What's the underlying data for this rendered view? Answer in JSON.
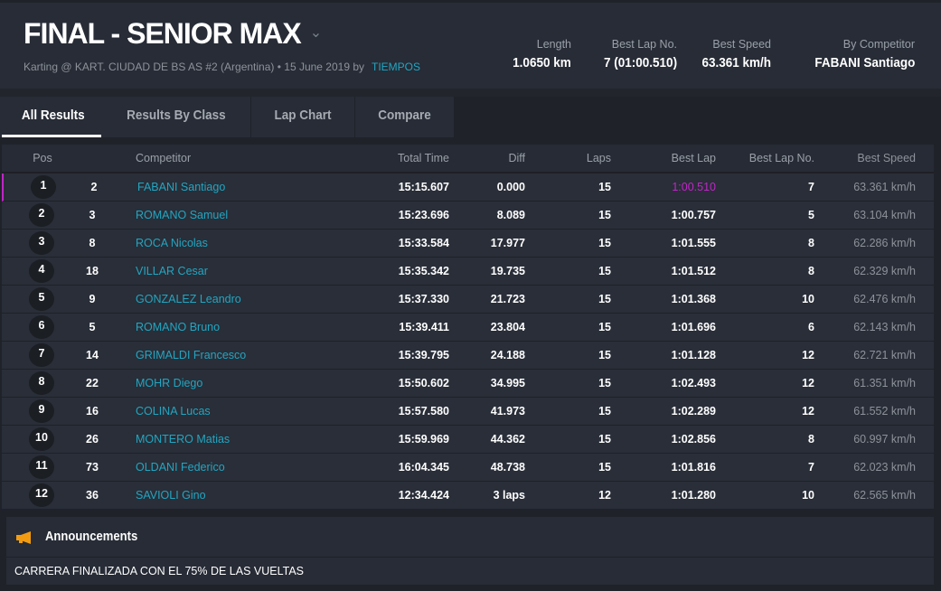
{
  "header": {
    "title": "FINAL - SENIOR MAX",
    "subtitle": "Karting @ KART. CIUDAD DE BS AS #2 (Argentina) • 15 June 2019 by",
    "org_link": "TIEMPOS",
    "stats": [
      {
        "label": "Length",
        "value": "1.0650 km"
      },
      {
        "label": "Best Lap No.",
        "value": "7 (01:00.510)"
      },
      {
        "label": "Best Speed",
        "value": "63.361 km/h"
      },
      {
        "label": "By Competitor",
        "value": "FABANI Santiago"
      }
    ]
  },
  "tabs": [
    {
      "label": "All Results",
      "active": true
    },
    {
      "label": "Results By Class"
    },
    {
      "label": "Lap Chart"
    },
    {
      "label": "Compare"
    }
  ],
  "table": {
    "columns": {
      "pos": "Pos",
      "competitor": "Competitor",
      "total_time": "Total Time",
      "diff": "Diff",
      "laps": "Laps",
      "best_lap": "Best Lap",
      "best_lap_no": "Best Lap No.",
      "best_speed": "Best Speed"
    },
    "rows": [
      {
        "pos": "1",
        "no": "2",
        "name": "FABANI Santiago",
        "total": "15:15.607",
        "diff": "0.000",
        "laps": "15",
        "best_lap": "1:00.510",
        "best_lap_no": "7",
        "speed": "63.361 km/h",
        "fastest": true
      },
      {
        "pos": "2",
        "no": "3",
        "name": "ROMANO Samuel",
        "total": "15:23.696",
        "diff": "8.089",
        "laps": "15",
        "best_lap": "1:00.757",
        "best_lap_no": "5",
        "speed": "63.104 km/h"
      },
      {
        "pos": "3",
        "no": "8",
        "name": "ROCA Nicolas",
        "total": "15:33.584",
        "diff": "17.977",
        "laps": "15",
        "best_lap": "1:01.555",
        "best_lap_no": "8",
        "speed": "62.286 km/h"
      },
      {
        "pos": "4",
        "no": "18",
        "name": "VILLAR Cesar",
        "total": "15:35.342",
        "diff": "19.735",
        "laps": "15",
        "best_lap": "1:01.512",
        "best_lap_no": "8",
        "speed": "62.329 km/h"
      },
      {
        "pos": "5",
        "no": "9",
        "name": "GONZALEZ Leandro",
        "total": "15:37.330",
        "diff": "21.723",
        "laps": "15",
        "best_lap": "1:01.368",
        "best_lap_no": "10",
        "speed": "62.476 km/h"
      },
      {
        "pos": "6",
        "no": "5",
        "name": "ROMANO Bruno",
        "total": "15:39.411",
        "diff": "23.804",
        "laps": "15",
        "best_lap": "1:01.696",
        "best_lap_no": "6",
        "speed": "62.143 km/h"
      },
      {
        "pos": "7",
        "no": "14",
        "name": "GRIMALDI Francesco",
        "total": "15:39.795",
        "diff": "24.188",
        "laps": "15",
        "best_lap": "1:01.128",
        "best_lap_no": "12",
        "speed": "62.721 km/h"
      },
      {
        "pos": "8",
        "no": "22",
        "name": "MOHR Diego",
        "total": "15:50.602",
        "diff": "34.995",
        "laps": "15",
        "best_lap": "1:02.493",
        "best_lap_no": "12",
        "speed": "61.351 km/h"
      },
      {
        "pos": "9",
        "no": "16",
        "name": "COLINA Lucas",
        "total": "15:57.580",
        "diff": "41.973",
        "laps": "15",
        "best_lap": "1:02.289",
        "best_lap_no": "12",
        "speed": "61.552 km/h"
      },
      {
        "pos": "10",
        "no": "26",
        "name": "MONTERO Matias",
        "total": "15:59.969",
        "diff": "44.362",
        "laps": "15",
        "best_lap": "1:02.856",
        "best_lap_no": "8",
        "speed": "60.997 km/h"
      },
      {
        "pos": "11",
        "no": "73",
        "name": "OLDANI Federico",
        "total": "16:04.345",
        "diff": "48.738",
        "laps": "15",
        "best_lap": "1:01.816",
        "best_lap_no": "7",
        "speed": "62.023 km/h"
      },
      {
        "pos": "12",
        "no": "36",
        "name": "SAVIOLI Gino",
        "total": "12:34.424",
        "diff": "3 laps",
        "laps": "12",
        "best_lap": "1:01.280",
        "best_lap_no": "10",
        "speed": "62.565 km/h"
      }
    ]
  },
  "announcements": {
    "title": "Announcements",
    "text": "CARRERA FINALIZADA CON EL 75% DE LAS VUELTAS",
    "icon": "megaphone-icon"
  },
  "colors": {
    "accent": "#22a6c2",
    "fastest": "#c026c7",
    "icon": "#f39c12"
  }
}
